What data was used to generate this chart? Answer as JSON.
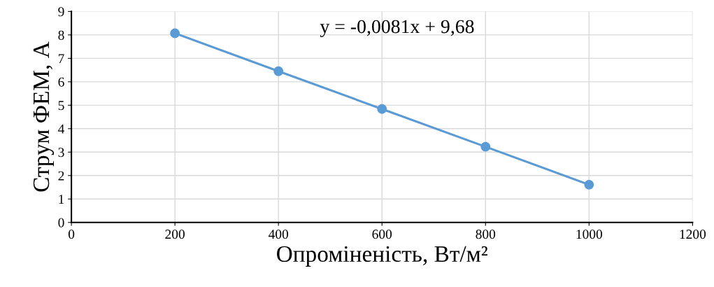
{
  "chart_data": {
    "type": "line",
    "xlabel": "Опроміненість, Вт/м²",
    "ylabel": "Струм ФЕМ, А",
    "x": [
      200,
      400,
      600,
      800,
      1000
    ],
    "series": [
      {
        "color": "#5b9bd5",
        "values": [
          8.07,
          6.45,
          4.84,
          3.23,
          1.61
        ]
      }
    ],
    "xlim": [
      0,
      1200
    ],
    "xticks": [
      0,
      200,
      400,
      600,
      800,
      1000,
      1200
    ],
    "ylim": [
      0,
      9
    ],
    "yticks": [
      0,
      1,
      2,
      3,
      4,
      5,
      6,
      7,
      8,
      9
    ],
    "grid": true,
    "marker": "circle",
    "line_style": "solid",
    "annotations": [
      "y = -0,0081x + 9,68"
    ]
  }
}
